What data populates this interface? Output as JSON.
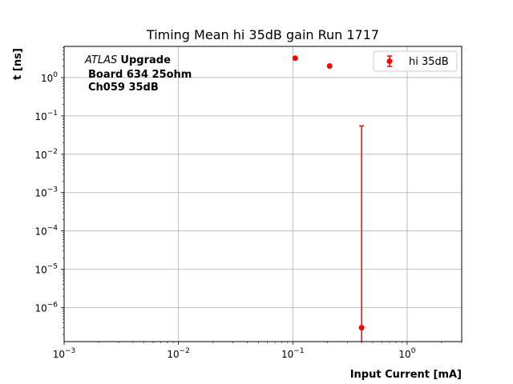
{
  "chart_data": {
    "type": "scatter",
    "title": "Timing Mean hi 35dB gain Run 1717",
    "xlabel": "Input Current [mA]",
    "ylabel": "t [ns]",
    "xscale": "log",
    "yscale": "log",
    "xlim": [
      0.001,
      3.0
    ],
    "ylim": [
      1.3e-07,
      6.5
    ],
    "grid": true,
    "legend_position": "upper right",
    "x_ticks": [
      {
        "value": 0.001,
        "base": "10",
        "exp": "−3"
      },
      {
        "value": 0.01,
        "base": "10",
        "exp": "−2"
      },
      {
        "value": 0.1,
        "base": "10",
        "exp": "−1"
      },
      {
        "value": 1.0,
        "base": "10",
        "exp": "0"
      }
    ],
    "y_ticks": [
      {
        "value": 1e-06,
        "base": "10",
        "exp": "−6"
      },
      {
        "value": 1e-05,
        "base": "10",
        "exp": "−5"
      },
      {
        "value": 0.0001,
        "base": "10",
        "exp": "−4"
      },
      {
        "value": 0.001,
        "base": "10",
        "exp": "−3"
      },
      {
        "value": 0.01,
        "base": "10",
        "exp": "−2"
      },
      {
        "value": 0.1,
        "base": "10",
        "exp": "−1"
      },
      {
        "value": 1.0,
        "base": "10",
        "exp": "0"
      }
    ],
    "annotation": {
      "atlas": "ATLAS",
      "upgrade": "Upgrade",
      "line2": "Board 634 25ohm",
      "line3": "Ch059 35dB"
    },
    "series": [
      {
        "name": "hi 35dB",
        "color": "#ff0000",
        "points": [
          {
            "x": 0.105,
            "y": 3.2,
            "yerr_low": null,
            "yerr_high": null
          },
          {
            "x": 0.21,
            "y": 2.0,
            "yerr_low": null,
            "yerr_high": null
          },
          {
            "x": 0.4,
            "y": 3e-07,
            "yerr_low": 3e-07,
            "yerr_high": 0.055
          }
        ]
      }
    ]
  }
}
